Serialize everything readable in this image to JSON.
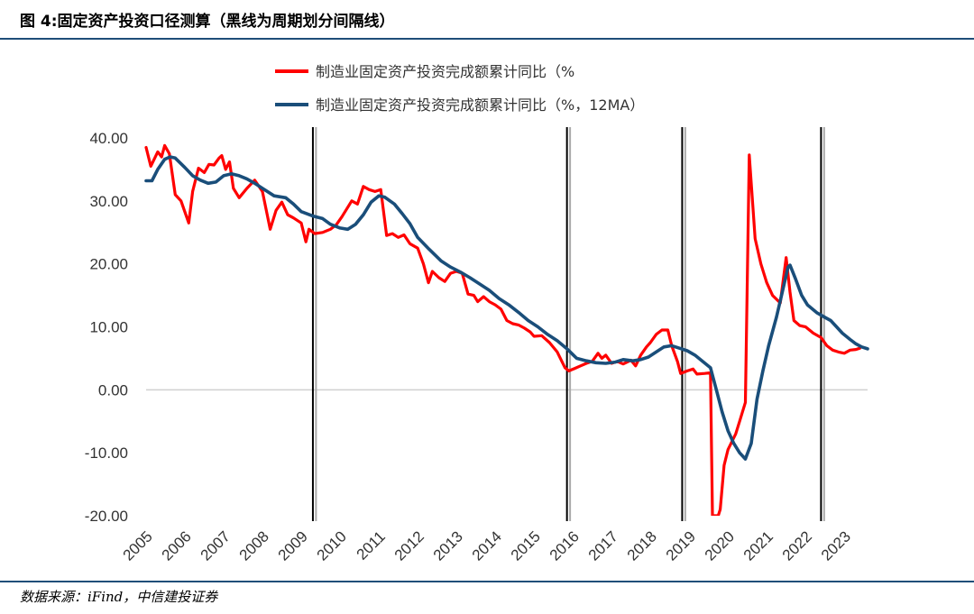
{
  "header": {
    "title": "图 4:固定资产投资口径测算（黑线为周期划分间隔线）"
  },
  "footer": {
    "source": "数据来源：iFind，中信建投证券"
  },
  "chart_data": {
    "type": "line",
    "title": "图 4:固定资产投资口径测算（黑线为周期划分间隔线）",
    "xlabel": "",
    "ylabel": "",
    "ylim": [
      -20,
      40
    ],
    "yticks": [
      "40.00",
      "30.00",
      "20.00",
      "10.00",
      "0.00",
      "-10.00",
      "-20.00"
    ],
    "ytick_values": [
      40,
      30,
      20,
      10,
      0,
      -10,
      -20
    ],
    "xlim": [
      2005.0,
      2023.6
    ],
    "xticks": [
      "2005",
      "2006",
      "2007",
      "2008",
      "2009",
      "2010",
      "2011",
      "2012",
      "2013",
      "2014",
      "2015",
      "2016",
      "2017",
      "2018",
      "2019",
      "2020",
      "2021",
      "2022",
      "2023"
    ],
    "legend_position": "top-center",
    "grid": false,
    "zero_line": true,
    "series": [
      {
        "name": "制造业固定资产投资完成额累计同比（%",
        "color": "#ff0000",
        "points": [
          [
            2005.0,
            38.5
          ],
          [
            2005.12,
            35.5
          ],
          [
            2005.3,
            37.8
          ],
          [
            2005.4,
            37.0
          ],
          [
            2005.48,
            38.8
          ],
          [
            2005.6,
            37.5
          ],
          [
            2005.75,
            31.0
          ],
          [
            2005.9,
            30.0
          ],
          [
            2006.1,
            26.5
          ],
          [
            2006.2,
            31.5
          ],
          [
            2006.35,
            35.2
          ],
          [
            2006.5,
            34.5
          ],
          [
            2006.62,
            35.8
          ],
          [
            2006.75,
            35.7
          ],
          [
            2006.88,
            36.8
          ],
          [
            2006.95,
            37.2
          ],
          [
            2007.05,
            35.0
          ],
          [
            2007.15,
            36.2
          ],
          [
            2007.25,
            32.0
          ],
          [
            2007.4,
            30.5
          ],
          [
            2007.6,
            32.0
          ],
          [
            2007.8,
            33.3
          ],
          [
            2008.0,
            31.5
          ],
          [
            2008.2,
            25.5
          ],
          [
            2008.35,
            28.5
          ],
          [
            2008.5,
            29.8
          ],
          [
            2008.65,
            27.8
          ],
          [
            2008.8,
            27.3
          ],
          [
            2009.0,
            26.5
          ],
          [
            2009.12,
            23.5
          ],
          [
            2009.2,
            25.5
          ],
          [
            2009.35,
            24.8
          ],
          [
            2009.55,
            25.0
          ],
          [
            2009.75,
            25.5
          ],
          [
            2009.9,
            26.2
          ],
          [
            2010.05,
            27.5
          ],
          [
            2010.3,
            30.0
          ],
          [
            2010.45,
            29.5
          ],
          [
            2010.6,
            32.3
          ],
          [
            2010.75,
            31.8
          ],
          [
            2010.9,
            31.5
          ],
          [
            2011.05,
            31.8
          ],
          [
            2011.2,
            24.5
          ],
          [
            2011.35,
            24.8
          ],
          [
            2011.5,
            24.2
          ],
          [
            2011.65,
            24.6
          ],
          [
            2011.8,
            23.2
          ],
          [
            2012.0,
            22.5
          ],
          [
            2012.15,
            20.0
          ],
          [
            2012.28,
            17.0
          ],
          [
            2012.38,
            18.8
          ],
          [
            2012.55,
            17.8
          ],
          [
            2012.7,
            17.2
          ],
          [
            2012.85,
            18.5
          ],
          [
            2013.0,
            18.8
          ],
          [
            2013.15,
            18.5
          ],
          [
            2013.3,
            15.2
          ],
          [
            2013.45,
            15.0
          ],
          [
            2013.55,
            14.0
          ],
          [
            2013.7,
            14.8
          ],
          [
            2013.85,
            14.0
          ],
          [
            2014.0,
            13.5
          ],
          [
            2014.15,
            12.8
          ],
          [
            2014.3,
            11.0
          ],
          [
            2014.45,
            10.5
          ],
          [
            2014.6,
            10.3
          ],
          [
            2014.75,
            9.8
          ],
          [
            2014.9,
            9.2
          ],
          [
            2015.0,
            8.5
          ],
          [
            2015.2,
            8.6
          ],
          [
            2015.4,
            7.5
          ],
          [
            2015.6,
            6.0
          ],
          [
            2015.8,
            3.5
          ],
          [
            2015.9,
            3.0
          ],
          [
            2016.05,
            3.4
          ],
          [
            2016.2,
            3.8
          ],
          [
            2016.35,
            4.2
          ],
          [
            2016.5,
            4.5
          ],
          [
            2016.65,
            5.8
          ],
          [
            2016.75,
            5.0
          ],
          [
            2016.85,
            5.5
          ],
          [
            2017.0,
            4.2
          ],
          [
            2017.15,
            4.5
          ],
          [
            2017.3,
            4.1
          ],
          [
            2017.5,
            4.7
          ],
          [
            2017.62,
            3.8
          ],
          [
            2017.75,
            5.5
          ],
          [
            2017.9,
            6.8
          ],
          [
            2018.0,
            7.5
          ],
          [
            2018.15,
            8.8
          ],
          [
            2018.3,
            9.5
          ],
          [
            2018.45,
            9.5
          ],
          [
            2018.55,
            7.0
          ],
          [
            2018.7,
            4.5
          ],
          [
            2018.78,
            2.6
          ],
          [
            2018.95,
            3.0
          ],
          [
            2019.1,
            3.3
          ],
          [
            2019.2,
            2.5
          ],
          [
            2019.4,
            2.6
          ],
          [
            2019.55,
            2.7
          ],
          [
            2019.6,
            -20.0
          ],
          [
            2019.75,
            -20.0
          ],
          [
            2019.8,
            -19.0
          ],
          [
            2019.9,
            -12.0
          ],
          [
            2020.0,
            -9.5
          ],
          [
            2020.2,
            -7.0
          ],
          [
            2020.3,
            -5.0
          ],
          [
            2020.45,
            -2.0
          ],
          [
            2020.55,
            37.3
          ],
          [
            2020.7,
            24.0
          ],
          [
            2020.85,
            20.0
          ],
          [
            2021.0,
            17.0
          ],
          [
            2021.15,
            15.0
          ],
          [
            2021.35,
            13.8
          ],
          [
            2021.5,
            21.0
          ],
          [
            2021.6,
            15.5
          ],
          [
            2021.7,
            11.0
          ],
          [
            2021.85,
            10.2
          ],
          [
            2022.0,
            10.0
          ],
          [
            2022.2,
            9.0
          ],
          [
            2022.4,
            8.3
          ],
          [
            2022.55,
            7.0
          ],
          [
            2022.7,
            6.3
          ],
          [
            2022.85,
            6.0
          ],
          [
            2023.0,
            5.8
          ],
          [
            2023.15,
            6.3
          ],
          [
            2023.3,
            6.4
          ],
          [
            2023.4,
            6.6
          ]
        ]
      },
      {
        "name": "制造业固定资产投资完成额累计同比（%，12MA）",
        "color": "#1a4e7a",
        "points": [
          [
            2005.0,
            33.2
          ],
          [
            2005.15,
            33.2
          ],
          [
            2005.3,
            35.0
          ],
          [
            2005.48,
            36.6
          ],
          [
            2005.62,
            37.0
          ],
          [
            2005.75,
            36.8
          ],
          [
            2006.0,
            35.3
          ],
          [
            2006.2,
            34.0
          ],
          [
            2006.4,
            33.3
          ],
          [
            2006.6,
            32.8
          ],
          [
            2006.8,
            33.0
          ],
          [
            2007.0,
            34.0
          ],
          [
            2007.2,
            34.3
          ],
          [
            2007.4,
            34.0
          ],
          [
            2007.6,
            33.5
          ],
          [
            2007.8,
            32.8
          ],
          [
            2008.0,
            32.0
          ],
          [
            2008.3,
            30.8
          ],
          [
            2008.6,
            30.5
          ],
          [
            2008.8,
            29.5
          ],
          [
            2009.0,
            28.3
          ],
          [
            2009.3,
            27.6
          ],
          [
            2009.55,
            27.2
          ],
          [
            2009.75,
            26.3
          ],
          [
            2010.0,
            25.7
          ],
          [
            2010.2,
            25.5
          ],
          [
            2010.4,
            26.3
          ],
          [
            2010.6,
            27.8
          ],
          [
            2010.8,
            29.8
          ],
          [
            2011.0,
            30.8
          ],
          [
            2011.15,
            30.6
          ],
          [
            2011.4,
            29.5
          ],
          [
            2011.6,
            28.0
          ],
          [
            2011.8,
            26.4
          ],
          [
            2012.0,
            24.2
          ],
          [
            2012.3,
            22.3
          ],
          [
            2012.6,
            20.5
          ],
          [
            2012.85,
            19.5
          ],
          [
            2013.1,
            18.7
          ],
          [
            2013.35,
            17.8
          ],
          [
            2013.6,
            16.8
          ],
          [
            2013.85,
            15.8
          ],
          [
            2014.1,
            14.5
          ],
          [
            2014.35,
            13.5
          ],
          [
            2014.6,
            12.3
          ],
          [
            2014.85,
            11.0
          ],
          [
            2015.1,
            10.0
          ],
          [
            2015.35,
            8.8
          ],
          [
            2015.6,
            7.8
          ],
          [
            2015.85,
            6.5
          ],
          [
            2016.1,
            5.0
          ],
          [
            2016.35,
            4.6
          ],
          [
            2016.6,
            4.3
          ],
          [
            2016.85,
            4.2
          ],
          [
            2017.1,
            4.4
          ],
          [
            2017.3,
            4.8
          ],
          [
            2017.55,
            4.6
          ],
          [
            2017.75,
            4.8
          ],
          [
            2017.95,
            5.2
          ],
          [
            2018.15,
            6.0
          ],
          [
            2018.35,
            6.8
          ],
          [
            2018.55,
            7.0
          ],
          [
            2018.75,
            6.6
          ],
          [
            2018.95,
            6.2
          ],
          [
            2019.15,
            5.5
          ],
          [
            2019.35,
            4.5
          ],
          [
            2019.55,
            3.5
          ],
          [
            2019.7,
            0.0
          ],
          [
            2019.85,
            -3.5
          ],
          [
            2020.0,
            -6.5
          ],
          [
            2020.15,
            -8.5
          ],
          [
            2020.3,
            -10.0
          ],
          [
            2020.45,
            -11.0
          ],
          [
            2020.6,
            -8.5
          ],
          [
            2020.75,
            -1.5
          ],
          [
            2020.9,
            3.0
          ],
          [
            2021.05,
            7.0
          ],
          [
            2021.25,
            11.5
          ],
          [
            2021.4,
            15.5
          ],
          [
            2021.55,
            19.5
          ],
          [
            2021.6,
            19.8
          ],
          [
            2021.75,
            17.5
          ],
          [
            2021.9,
            15.0
          ],
          [
            2022.05,
            13.5
          ],
          [
            2022.3,
            12.2
          ],
          [
            2022.5,
            11.5
          ],
          [
            2022.65,
            11.0
          ],
          [
            2022.8,
            10.0
          ],
          [
            2022.95,
            9.0
          ],
          [
            2023.15,
            8.0
          ],
          [
            2023.3,
            7.3
          ],
          [
            2023.45,
            6.8
          ],
          [
            2023.6,
            6.5
          ]
        ]
      }
    ],
    "cycle_dividers": [
      {
        "x": 2009.3,
        "color": "#000000"
      },
      {
        "x": 2009.38,
        "color": "#aaaaaa"
      },
      {
        "x": 2015.85,
        "color": "#000000"
      },
      {
        "x": 2015.93,
        "color": "#aaaaaa"
      },
      {
        "x": 2018.82,
        "color": "#000000"
      },
      {
        "x": 2018.9,
        "color": "#aaaaaa"
      },
      {
        "x": 2022.4,
        "color": "#000000"
      },
      {
        "x": 2022.48,
        "color": "#aaaaaa"
      }
    ]
  }
}
